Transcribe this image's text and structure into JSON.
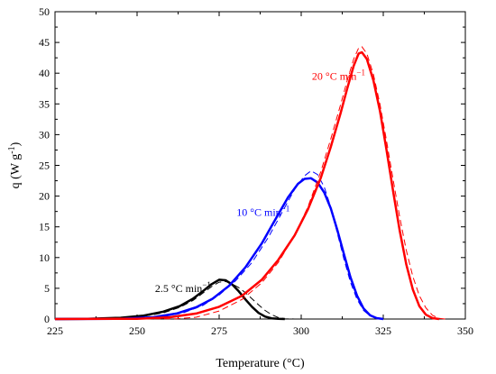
{
  "chart_data": {
    "type": "line",
    "xlabel": "Temperature (°C)",
    "ylabel_main": "q (W g",
    "ylabel_sup": "-1",
    "ylabel_close": ")",
    "xlim": [
      225,
      350
    ],
    "ylim": [
      0,
      50
    ],
    "xticks": [
      225,
      250,
      275,
      300,
      325,
      350
    ],
    "yticks": [
      0,
      5,
      10,
      15,
      20,
      25,
      30,
      35,
      40,
      45,
      50
    ],
    "grid": false,
    "series": [
      {
        "label": "2.5 °C min",
        "label_sup": "−1",
        "color": "#000000",
        "label_at": [
          272.5,
          4.4
        ],
        "solid": [
          [
            225,
            0
          ],
          [
            235,
            0.05
          ],
          [
            245,
            0.2
          ],
          [
            252,
            0.55
          ],
          [
            258,
            1.2
          ],
          [
            263,
            2.1
          ],
          [
            267,
            3.3
          ],
          [
            270,
            4.5
          ],
          [
            272.5,
            5.6
          ],
          [
            275,
            6.4
          ],
          [
            277,
            6.3
          ],
          [
            279,
            5.6
          ],
          [
            281,
            4.5
          ],
          [
            283,
            3.2
          ],
          [
            285,
            2.0
          ],
          [
            287,
            1.0
          ],
          [
            289,
            0.4
          ],
          [
            291,
            0.12
          ],
          [
            293,
            0.03
          ],
          [
            295,
            0
          ]
        ],
        "dashed": [
          [
            225,
            0
          ],
          [
            245,
            0.15
          ],
          [
            252,
            0.45
          ],
          [
            258,
            1.0
          ],
          [
            263,
            1.9
          ],
          [
            267,
            3.0
          ],
          [
            270,
            4.2
          ],
          [
            273,
            5.4
          ],
          [
            275,
            6.0
          ],
          [
            277,
            6.1
          ],
          [
            279,
            5.7
          ],
          [
            281,
            5.1
          ],
          [
            283,
            4.3
          ],
          [
            285,
            3.3
          ],
          [
            287,
            2.3
          ],
          [
            289,
            1.4
          ],
          [
            291,
            0.7
          ],
          [
            293,
            0.25
          ],
          [
            295,
            0.05
          ],
          [
            298,
            0
          ]
        ]
      },
      {
        "label": "10 °C min",
        "label_sup": "−1",
        "color": "#0000ff",
        "label_at": [
          296.5,
          16.8
        ],
        "solid": [
          [
            225,
            0
          ],
          [
            245,
            0.05
          ],
          [
            255,
            0.3
          ],
          [
            262,
            0.9
          ],
          [
            268,
            1.9
          ],
          [
            273,
            3.3
          ],
          [
            278,
            5.4
          ],
          [
            283,
            8.4
          ],
          [
            288,
            12.3
          ],
          [
            292,
            16.1
          ],
          [
            296,
            19.8
          ],
          [
            299,
            22.0
          ],
          [
            301,
            22.8
          ],
          [
            303,
            22.9
          ],
          [
            305,
            22.2
          ],
          [
            307,
            20.6
          ],
          [
            309,
            18.0
          ],
          [
            311,
            14.5
          ],
          [
            313,
            10.6
          ],
          [
            315,
            6.8
          ],
          [
            317,
            3.8
          ],
          [
            319,
            1.7
          ],
          [
            321,
            0.6
          ],
          [
            323,
            0.15
          ],
          [
            325,
            0
          ]
        ],
        "dashed": [
          [
            225,
            0
          ],
          [
            250,
            0.1
          ],
          [
            258,
            0.4
          ],
          [
            264,
            1.0
          ],
          [
            270,
            2.2
          ],
          [
            275,
            3.9
          ],
          [
            280,
            6.2
          ],
          [
            285,
            9.2
          ],
          [
            290,
            13.3
          ],
          [
            294,
            17.2
          ],
          [
            298,
            21.1
          ],
          [
            301,
            23.3
          ],
          [
            303,
            24.1
          ],
          [
            305,
            23.5
          ],
          [
            307,
            21.5
          ],
          [
            309,
            18.2
          ],
          [
            311,
            14.0
          ],
          [
            313,
            9.8
          ],
          [
            315,
            6.0
          ],
          [
            317,
            3.2
          ],
          [
            319,
            1.4
          ],
          [
            321,
            0.5
          ],
          [
            323,
            0.1
          ],
          [
            325,
            0
          ]
        ]
      },
      {
        "label": "20 °C min",
        "label_sup": "−1",
        "color": "#ff0000",
        "label_at": [
          319.5,
          38.9
        ],
        "solid": [
          [
            225,
            0
          ],
          [
            250,
            0.05
          ],
          [
            260,
            0.3
          ],
          [
            268,
            0.9
          ],
          [
            275,
            2.0
          ],
          [
            282,
            3.8
          ],
          [
            288,
            6.4
          ],
          [
            293,
            9.6
          ],
          [
            298,
            13.6
          ],
          [
            302,
            17.8
          ],
          [
            306,
            23.0
          ],
          [
            309,
            28.0
          ],
          [
            312,
            33.5
          ],
          [
            314,
            37.5
          ],
          [
            316,
            41.2
          ],
          [
            317.5,
            43.2
          ],
          [
            318.5,
            43.4
          ],
          [
            320,
            42.3
          ],
          [
            322,
            38.8
          ],
          [
            324,
            33.8
          ],
          [
            326,
            27.5
          ],
          [
            328,
            20.8
          ],
          [
            330,
            14.4
          ],
          [
            332,
            8.9
          ],
          [
            334,
            4.8
          ],
          [
            336,
            2.1
          ],
          [
            338,
            0.7
          ],
          [
            340,
            0.15
          ],
          [
            342,
            0
          ]
        ],
        "dashed": [
          [
            225,
            0
          ],
          [
            262,
            0.05
          ],
          [
            268,
            0.3
          ],
          [
            275,
            1.3
          ],
          [
            282,
            3.2
          ],
          [
            288,
            5.9
          ],
          [
            293,
            9.2
          ],
          [
            298,
            13.6
          ],
          [
            302,
            18.2
          ],
          [
            306,
            24.0
          ],
          [
            309,
            29.3
          ],
          [
            312,
            34.9
          ],
          [
            314,
            38.8
          ],
          [
            316,
            42.3
          ],
          [
            317.5,
            44.1
          ],
          [
            318.5,
            44.3
          ],
          [
            320,
            43.2
          ],
          [
            322,
            39.8
          ],
          [
            324,
            34.9
          ],
          [
            326,
            29.0
          ],
          [
            328,
            22.7
          ],
          [
            330,
            16.6
          ],
          [
            332,
            11.2
          ],
          [
            334,
            6.9
          ],
          [
            336,
            3.8
          ],
          [
            338,
            1.8
          ],
          [
            340,
            0.6
          ],
          [
            342,
            0.1
          ],
          [
            344,
            0
          ]
        ]
      }
    ]
  }
}
